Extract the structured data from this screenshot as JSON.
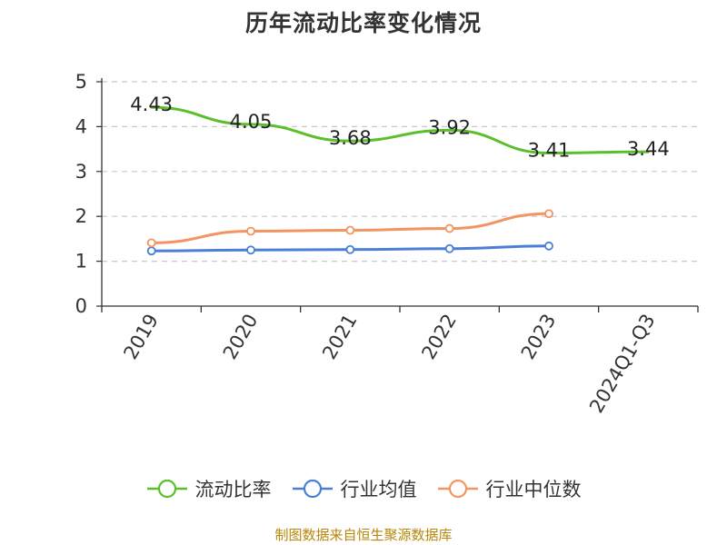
{
  "chart_data": {
    "type": "line",
    "title": "历年流动比率变化情况",
    "categories": [
      "2019",
      "2020",
      "2021",
      "2022",
      "2023",
      "2024Q1-Q3"
    ],
    "ylim": [
      0,
      5
    ],
    "yticks": [
      "0",
      "1",
      "2",
      "3",
      "4",
      "5"
    ],
    "grid": true,
    "legend_position": "bottom",
    "series": [
      {
        "name": "流动比率",
        "color": "#5bbf2b",
        "values": [
          4.43,
          4.05,
          3.68,
          3.92,
          3.41,
          3.44
        ],
        "labels": [
          "4.43",
          "4.05",
          "3.68",
          "3.92",
          "3.41",
          "3.44"
        ],
        "show_markers": false
      },
      {
        "name": "行业均值",
        "color": "#4a7fd6",
        "values": [
          1.23,
          1.25,
          1.26,
          1.28,
          1.34,
          null
        ],
        "show_markers": true
      },
      {
        "name": "行业中位数",
        "color": "#f39461",
        "values": [
          1.41,
          1.67,
          1.69,
          1.73,
          2.06,
          null
        ],
        "show_markers": true
      }
    ]
  },
  "footer": {
    "source": "制图数据来自恒生聚源数据库"
  }
}
